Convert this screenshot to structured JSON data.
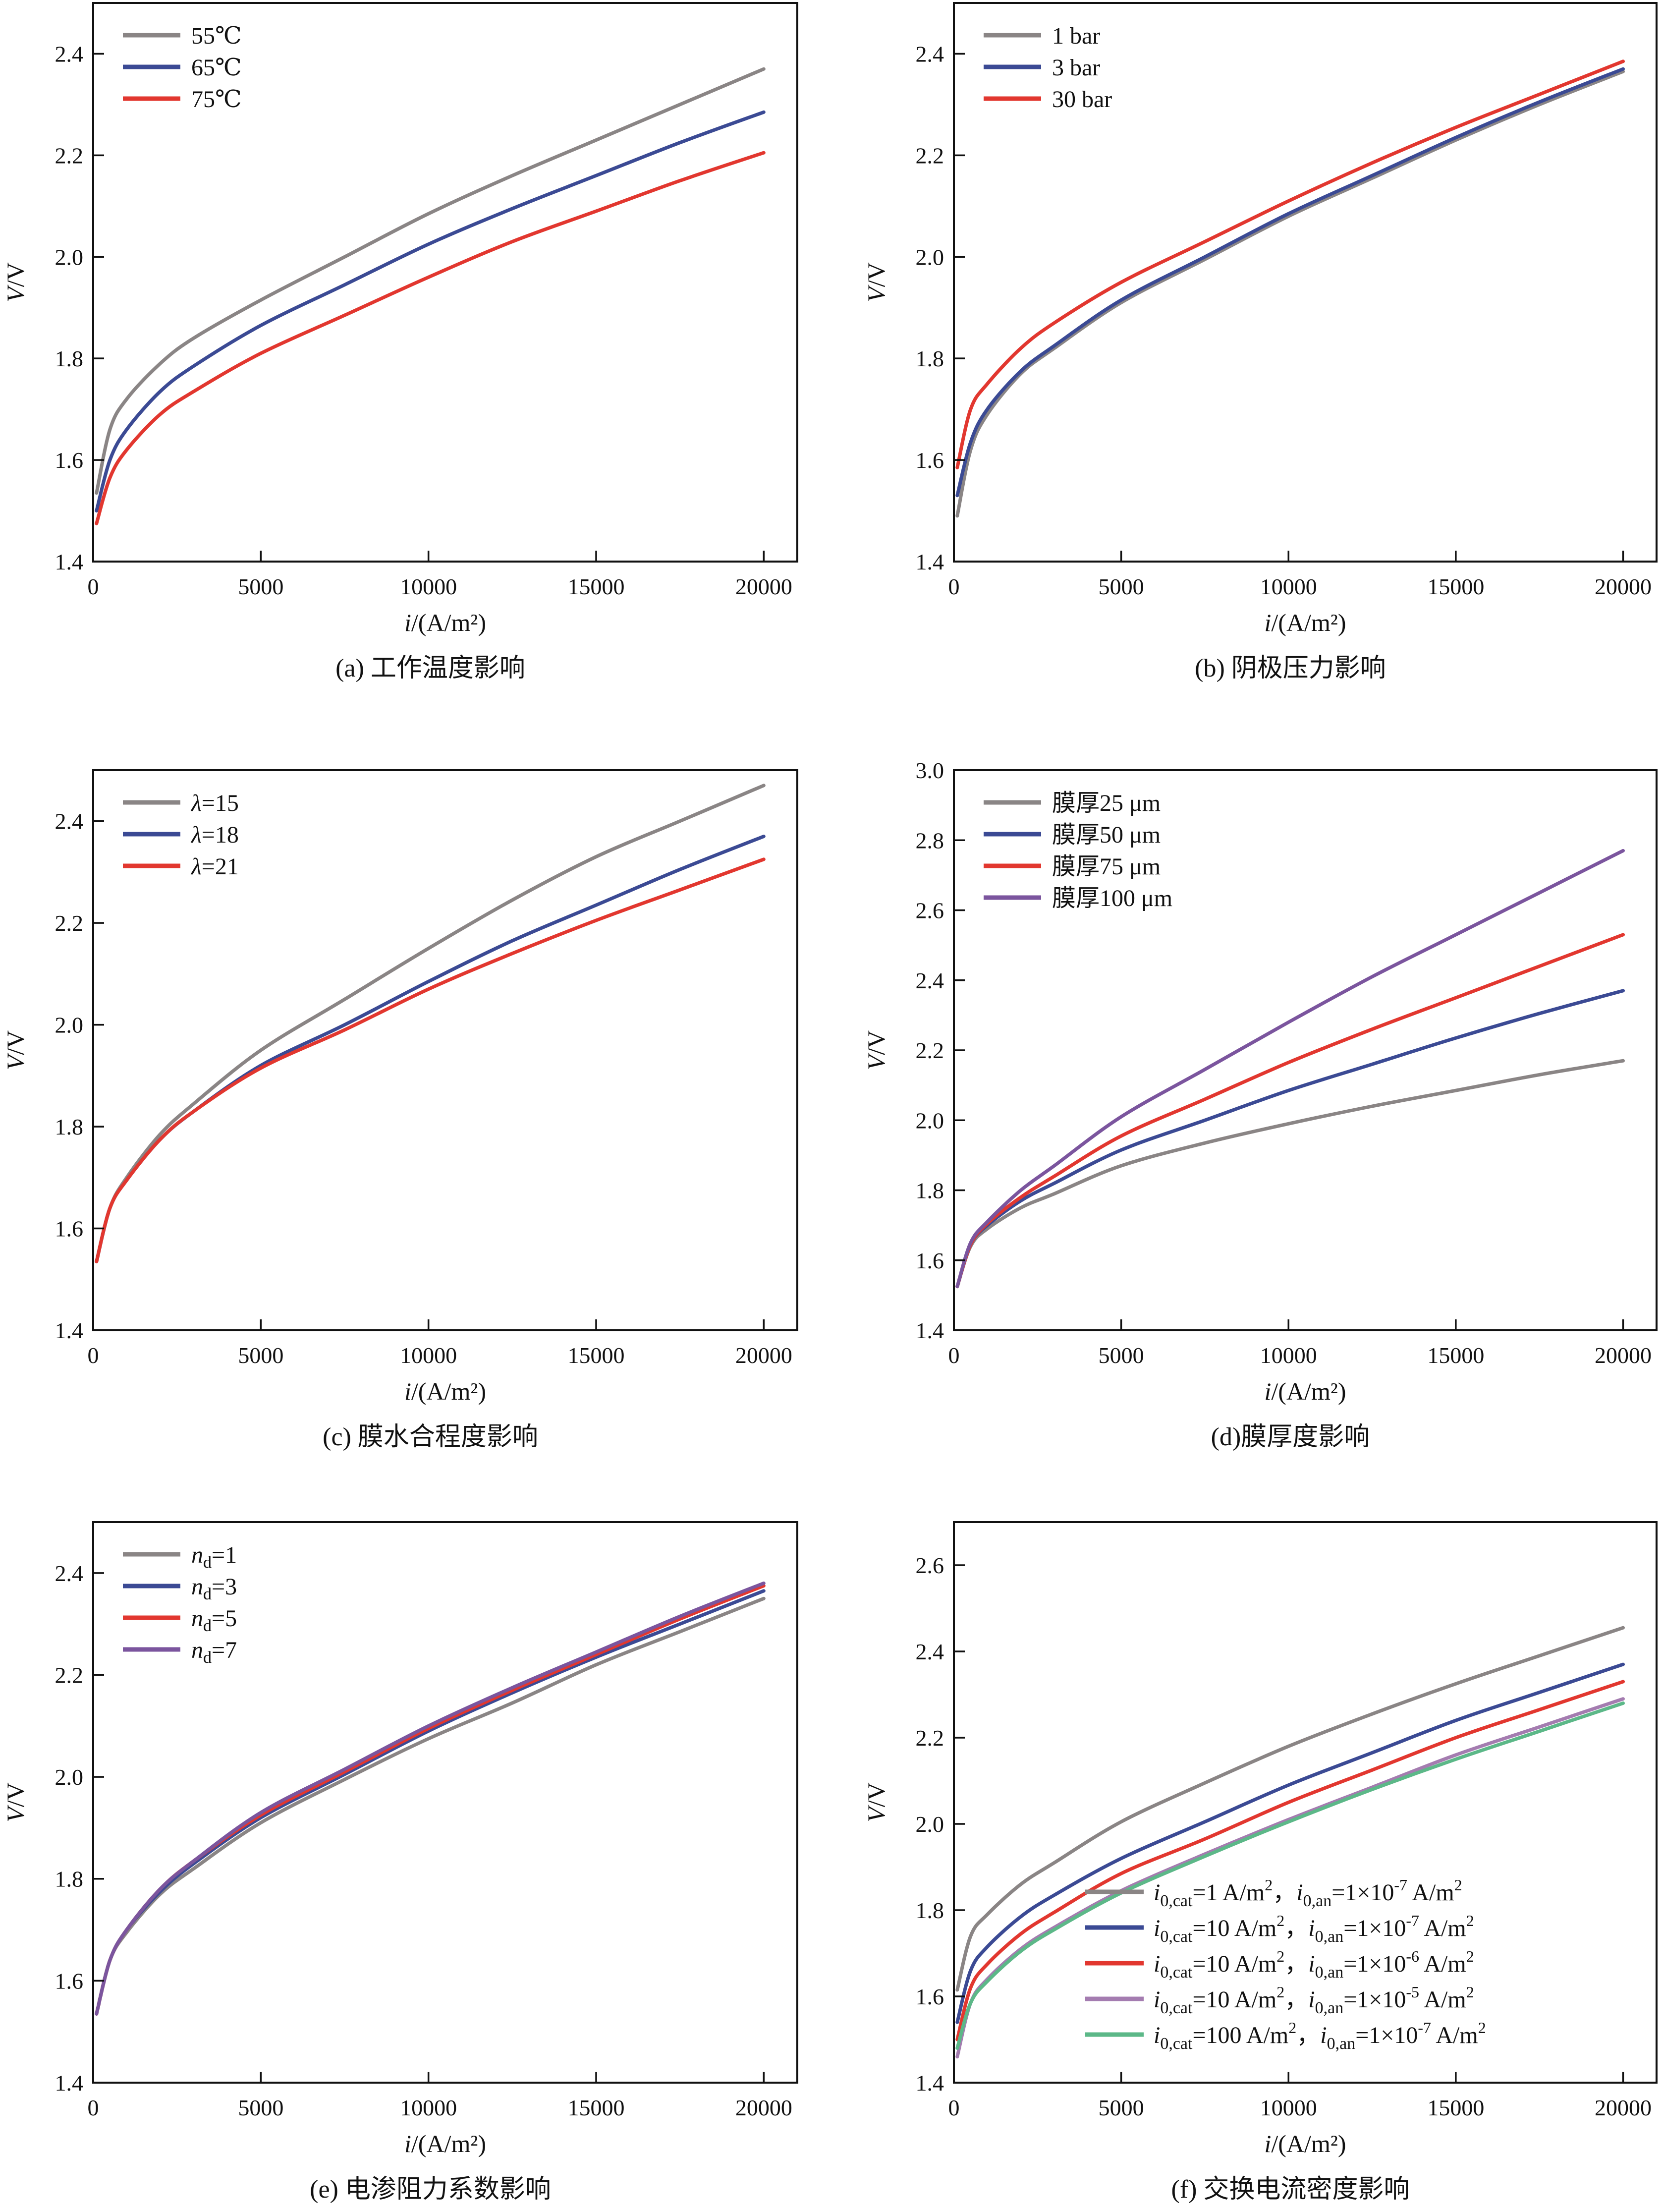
{
  "chart_data": [
    {
      "id": "a",
      "type": "line",
      "caption": "(a) 工作温度影响",
      "xlabel": "i/(A/m²)",
      "ylabel": "V/V",
      "xlim": [
        0,
        21000
      ],
      "ylim": [
        1.4,
        2.5
      ],
      "xticks": [
        0,
        5000,
        10000,
        15000,
        20000
      ],
      "yticks": [
        1.4,
        1.6,
        1.8,
        2.0,
        2.2,
        2.4
      ],
      "legend_position": "top-left",
      "grid": false,
      "x": [
        100,
        500,
        1000,
        2000,
        3000,
        5000,
        7500,
        10000,
        12500,
        15000,
        17500,
        20000
      ],
      "series": [
        {
          "name": "55℃",
          "color": "#8a8585",
          "values": [
            1.535,
            1.66,
            1.72,
            1.79,
            1.84,
            1.915,
            2.0,
            2.085,
            2.16,
            2.23,
            2.3,
            2.37
          ]
        },
        {
          "name": "65℃",
          "color": "#3b4a94",
          "values": [
            1.5,
            1.6,
            1.66,
            1.735,
            1.785,
            1.865,
            1.945,
            2.025,
            2.095,
            2.16,
            2.225,
            2.285
          ]
        },
        {
          "name": "75℃",
          "color": "#e2372f",
          "values": [
            1.475,
            1.565,
            1.62,
            1.69,
            1.735,
            1.81,
            1.885,
            1.96,
            2.03,
            2.09,
            2.15,
            2.205
          ]
        }
      ]
    },
    {
      "id": "b",
      "type": "line",
      "caption": "(b) 阴极压力影响",
      "xlabel": "i/(A/m²)",
      "ylabel": "V/V",
      "xlim": [
        0,
        21000
      ],
      "ylim": [
        1.4,
        2.5
      ],
      "xticks": [
        0,
        5000,
        10000,
        15000,
        20000
      ],
      "yticks": [
        1.4,
        1.6,
        1.8,
        2.0,
        2.2,
        2.4
      ],
      "legend_position": "top-left",
      "grid": false,
      "x": [
        100,
        500,
        1000,
        2000,
        3000,
        5000,
        7500,
        10000,
        12500,
        15000,
        17500,
        20000
      ],
      "series": [
        {
          "name": "1 bar",
          "color": "#8a8585",
          "values": [
            1.49,
            1.62,
            1.69,
            1.77,
            1.82,
            1.91,
            1.995,
            2.08,
            2.155,
            2.23,
            2.3,
            2.365
          ]
        },
        {
          "name": "3 bar",
          "color": "#3b4a94",
          "values": [
            1.53,
            1.635,
            1.7,
            1.775,
            1.825,
            1.915,
            2.0,
            2.085,
            2.16,
            2.235,
            2.305,
            2.37
          ]
        },
        {
          "name": "30 bar",
          "color": "#e2372f",
          "values": [
            1.585,
            1.7,
            1.75,
            1.82,
            1.87,
            1.95,
            2.03,
            2.11,
            2.185,
            2.255,
            2.32,
            2.385
          ]
        }
      ]
    },
    {
      "id": "c",
      "type": "line",
      "caption": "(c) 膜水合程度影响",
      "xlabel": "i/(A/m²)",
      "ylabel": "V/V",
      "xlim": [
        0,
        21000
      ],
      "ylim": [
        1.4,
        2.5
      ],
      "xticks": [
        0,
        5000,
        10000,
        15000,
        20000
      ],
      "yticks": [
        1.4,
        1.6,
        1.8,
        2.0,
        2.2,
        2.4
      ],
      "legend_position": "top-left",
      "grid": false,
      "x": [
        100,
        500,
        1000,
        2000,
        3000,
        5000,
        7500,
        10000,
        12500,
        15000,
        17500,
        20000
      ],
      "series": [
        {
          "name": "λ=15",
          "color": "#8a8585",
          "values": [
            1.535,
            1.64,
            1.7,
            1.785,
            1.845,
            1.95,
            2.05,
            2.15,
            2.245,
            2.33,
            2.4,
            2.47
          ]
        },
        {
          "name": "λ=18",
          "color": "#3b4a94",
          "values": [
            1.535,
            1.64,
            1.695,
            1.775,
            1.83,
            1.92,
            2.0,
            2.085,
            2.165,
            2.235,
            2.305,
            2.37
          ]
        },
        {
          "name": "λ=21",
          "color": "#e2372f",
          "values": [
            1.535,
            1.64,
            1.695,
            1.775,
            1.83,
            1.915,
            1.99,
            2.07,
            2.14,
            2.205,
            2.265,
            2.325
          ]
        }
      ]
    },
    {
      "id": "d",
      "type": "line",
      "caption": "(d)膜厚度影响",
      "xlabel": "i/(A/m²)",
      "ylabel": "V/V",
      "xlim": [
        0,
        21000
      ],
      "ylim": [
        1.4,
        3.0
      ],
      "xticks": [
        0,
        5000,
        10000,
        15000,
        20000
      ],
      "yticks": [
        1.4,
        1.6,
        1.8,
        2.0,
        2.2,
        2.4,
        2.6,
        2.8,
        3.0
      ],
      "legend_position": "top-left",
      "grid": false,
      "x": [
        100,
        500,
        1000,
        2000,
        3000,
        5000,
        7500,
        10000,
        12500,
        15000,
        17500,
        20000
      ],
      "series": [
        {
          "name": "膜厚25 μm",
          "color": "#8a8585",
          "values": [
            1.525,
            1.64,
            1.69,
            1.75,
            1.79,
            1.87,
            1.935,
            1.99,
            2.04,
            2.085,
            2.13,
            2.17
          ]
        },
        {
          "name": "膜厚50 μm",
          "color": "#3b4a94",
          "values": [
            1.525,
            1.645,
            1.7,
            1.77,
            1.82,
            1.915,
            2.0,
            2.085,
            2.16,
            2.235,
            2.305,
            2.37
          ]
        },
        {
          "name": "膜厚75 μm",
          "color": "#e2372f",
          "values": [
            1.525,
            1.645,
            1.705,
            1.78,
            1.84,
            1.955,
            2.06,
            2.165,
            2.26,
            2.35,
            2.44,
            2.53
          ]
        },
        {
          "name": "膜厚100 μm",
          "color": "#7b559e",
          "values": [
            1.525,
            1.65,
            1.71,
            1.8,
            1.87,
            2.01,
            2.145,
            2.28,
            2.41,
            2.53,
            2.65,
            2.77
          ]
        }
      ]
    },
    {
      "id": "e",
      "type": "line",
      "caption": "(e) 电渗阻力系数影响",
      "xlabel": "i/(A/m²)",
      "ylabel": "V/V",
      "xlim": [
        0,
        21000
      ],
      "ylim": [
        1.4,
        2.5
      ],
      "xticks": [
        0,
        5000,
        10000,
        15000,
        20000
      ],
      "yticks": [
        1.4,
        1.6,
        1.8,
        2.0,
        2.2,
        2.4
      ],
      "legend_position": "top-left",
      "grid": false,
      "x": [
        100,
        500,
        1000,
        2000,
        3000,
        5000,
        7500,
        10000,
        12500,
        15000,
        17500,
        20000
      ],
      "series": [
        {
          "name": "nd=1",
          "label_main": "n",
          "label_sub": "d",
          "label_rest": "=1",
          "color": "#8a8585",
          "values": [
            1.535,
            1.64,
            1.695,
            1.77,
            1.82,
            1.91,
            1.995,
            2.075,
            2.145,
            2.22,
            2.285,
            2.35
          ]
        },
        {
          "name": "nd=3",
          "label_main": "n",
          "label_sub": "d",
          "label_rest": "=3",
          "color": "#3b4a94",
          "values": [
            1.535,
            1.64,
            1.7,
            1.775,
            1.83,
            1.92,
            2.005,
            2.09,
            2.165,
            2.235,
            2.3,
            2.365
          ]
        },
        {
          "name": "nd=5",
          "label_main": "n",
          "label_sub": "d",
          "label_rest": "=5",
          "color": "#e2372f",
          "values": [
            1.535,
            1.64,
            1.7,
            1.78,
            1.835,
            1.925,
            2.01,
            2.095,
            2.17,
            2.24,
            2.31,
            2.375
          ]
        },
        {
          "name": "nd=7",
          "label_main": "n",
          "label_sub": "d",
          "label_rest": "=7",
          "color": "#7b559e",
          "values": [
            1.535,
            1.64,
            1.7,
            1.78,
            1.835,
            1.93,
            2.015,
            2.1,
            2.175,
            2.245,
            2.315,
            2.38
          ]
        }
      ]
    },
    {
      "id": "f",
      "type": "line",
      "caption": "(f) 交换电流密度影响",
      "xlabel": "i/(A/m²)",
      "ylabel": "V/V",
      "xlim": [
        0,
        21000
      ],
      "ylim": [
        1.4,
        2.7
      ],
      "xticks": [
        0,
        5000,
        10000,
        15000,
        20000
      ],
      "yticks": [
        1.4,
        1.6,
        1.8,
        2.0,
        2.2,
        2.4,
        2.6
      ],
      "legend_position": "bottom-right",
      "grid": false,
      "x": [
        100,
        500,
        1000,
        2000,
        3000,
        5000,
        7500,
        10000,
        12500,
        15000,
        17500,
        20000
      ],
      "series": [
        {
          "name": "i0,cat=1 A/m², i0,an=1×10⁻⁷ A/m²",
          "cat": "=1 A/m",
          "an_exp": "-7",
          "color": "#8a8585",
          "values": [
            1.615,
            1.74,
            1.79,
            1.86,
            1.91,
            2.005,
            2.095,
            2.18,
            2.255,
            2.325,
            2.39,
            2.455
          ]
        },
        {
          "name": "i0,cat=10 A/m², i0,an=1×10⁻⁷ A/m²",
          "cat": "=10 A/m",
          "an_exp": "-7",
          "color": "#3b4a94",
          "values": [
            1.54,
            1.66,
            1.715,
            1.785,
            1.835,
            1.92,
            2.005,
            2.09,
            2.165,
            2.24,
            2.305,
            2.37
          ]
        },
        {
          "name": "i0,cat=10 A/m², i0,an=1×10⁻⁶ A/m²",
          "cat": "=10 A/m",
          "an_exp": "-6",
          "color": "#e2372f",
          "values": [
            1.5,
            1.62,
            1.675,
            1.745,
            1.795,
            1.885,
            1.965,
            2.05,
            2.125,
            2.2,
            2.265,
            2.33
          ]
        },
        {
          "name": "i0,cat=10 A/m², i0,an=1×10⁻⁵ A/m²",
          "cat": "=10 A/m",
          "an_exp": "-5",
          "color": "#a47cb0",
          "values": [
            1.46,
            1.585,
            1.64,
            1.71,
            1.76,
            1.845,
            1.93,
            2.01,
            2.085,
            2.16,
            2.225,
            2.29
          ]
        },
        {
          "name": "i0,cat=100 A/m², i0,an=1×10⁻⁷ A/m²",
          "cat": "=100 A/m",
          "an_exp": "-7",
          "color": "#5cb888",
          "values": [
            1.48,
            1.585,
            1.635,
            1.705,
            1.755,
            1.84,
            1.925,
            2.005,
            2.08,
            2.15,
            2.215,
            2.28
          ]
        }
      ]
    }
  ]
}
